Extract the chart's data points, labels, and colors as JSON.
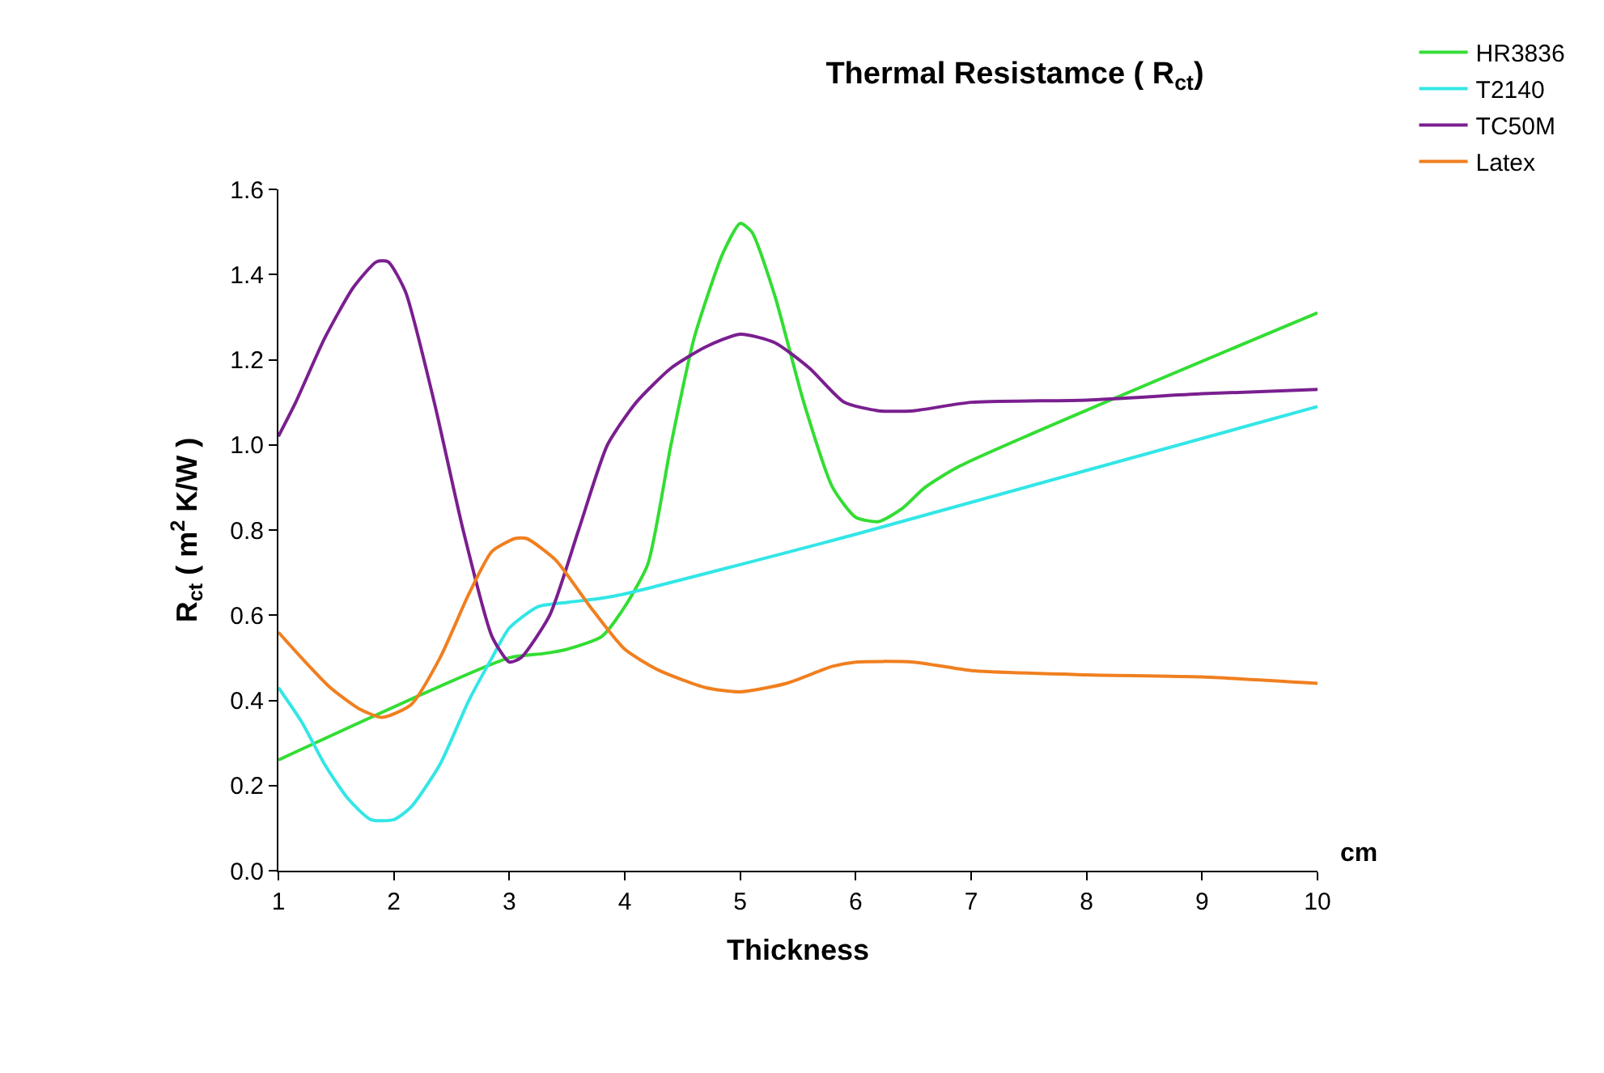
{
  "chart_data": {
    "type": "line",
    "title": "Thermal Resistamce ( R$_{ct}$)",
    "xlabel": "Thickness",
    "ylabel": "R$_{ct}$ ( m$^{2}$ K/W )",
    "annotations": [
      "cm"
    ],
    "xlim": [
      1,
      10
    ],
    "xticks": [
      1,
      2,
      3,
      4,
      5,
      6,
      7,
      8,
      9,
      10
    ],
    "ylim": [
      0,
      1.6
    ],
    "yticks": [
      {
        "value": 0,
        "label": "0.0"
      },
      {
        "value": 0.2,
        "label": "0.2"
      },
      {
        "value": 0.4,
        "label": "0.4"
      },
      {
        "value": 0.6,
        "label": "0.6"
      },
      {
        "value": 0.8,
        "label": "0.8"
      },
      {
        "value": 1.0,
        "label": "1.0"
      },
      {
        "value": 1.2,
        "label": "1.2"
      },
      {
        "value": 1.4,
        "label": "1.4"
      },
      {
        "value": 1.6,
        "label": "1.6"
      }
    ],
    "legend": "top right",
    "marker": "none",
    "line_style": "solid",
    "series": [
      {
        "name": "HR3836",
        "color": "#33dd33",
        "x": [
          1,
          3,
          3.3,
          3.5,
          3.8,
          4.0,
          4.2,
          4.4,
          4.6,
          4.85,
          5.0,
          5.1,
          5.3,
          5.55,
          5.8,
          6.0,
          6.2,
          6.4,
          6.6,
          6.9,
          10
        ],
        "values": [
          0.26,
          0.5,
          0.51,
          0.52,
          0.55,
          0.62,
          0.72,
          1.0,
          1.25,
          1.45,
          1.52,
          1.5,
          1.35,
          1.1,
          0.9,
          0.83,
          0.82,
          0.85,
          0.9,
          0.95,
          1.31
        ]
      },
      {
        "name": "T2140",
        "color": "#33e6e6",
        "x": [
          1,
          1.2,
          1.4,
          1.6,
          1.8,
          2.0,
          2.15,
          2.4,
          2.65,
          2.85,
          3.0,
          3.25,
          3.5,
          3.8,
          4.0,
          6,
          10
        ],
        "values": [
          0.43,
          0.35,
          0.25,
          0.17,
          0.12,
          0.12,
          0.15,
          0.25,
          0.4,
          0.5,
          0.57,
          0.62,
          0.63,
          0.64,
          0.65,
          0.79,
          1.09
        ]
      },
      {
        "name": "TC50M",
        "color": "#7a1f8f",
        "x": [
          1,
          1.15,
          1.4,
          1.65,
          1.85,
          1.95,
          2.1,
          2.35,
          2.6,
          2.85,
          3.0,
          3.1,
          3.35,
          3.6,
          3.85,
          4.1,
          4.4,
          4.7,
          5.0,
          5.3,
          5.6,
          5.9,
          6.2,
          6.5,
          7,
          8,
          9,
          10
        ],
        "values": [
          1.02,
          1.1,
          1.25,
          1.37,
          1.43,
          1.43,
          1.36,
          1.1,
          0.8,
          0.55,
          0.49,
          0.5,
          0.6,
          0.8,
          1.0,
          1.1,
          1.18,
          1.23,
          1.26,
          1.24,
          1.18,
          1.1,
          1.08,
          1.08,
          1.1,
          1.105,
          1.12,
          1.13
        ]
      },
      {
        "name": "Latex",
        "color": "#f07f1f",
        "x": [
          1,
          1.2,
          1.45,
          1.7,
          1.9,
          2.15,
          2.4,
          2.65,
          2.85,
          3.05,
          3.15,
          3.4,
          3.7,
          4.0,
          4.3,
          4.7,
          5.0,
          5.4,
          5.8,
          6,
          6.5,
          7,
          8,
          9,
          10
        ],
        "values": [
          0.56,
          0.5,
          0.43,
          0.38,
          0.36,
          0.39,
          0.5,
          0.65,
          0.75,
          0.78,
          0.78,
          0.73,
          0.62,
          0.52,
          0.47,
          0.43,
          0.42,
          0.44,
          0.48,
          0.49,
          0.49,
          0.47,
          0.46,
          0.455,
          0.44
        ]
      }
    ]
  }
}
